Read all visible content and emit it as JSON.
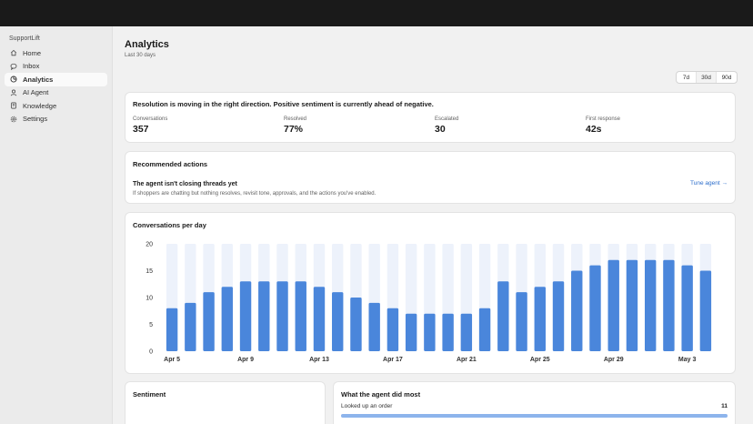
{
  "app": {
    "brand": "SupportLift"
  },
  "sidebar": {
    "items": [
      {
        "label": "Home",
        "icon": "home-icon",
        "active": false
      },
      {
        "label": "Inbox",
        "icon": "inbox-icon",
        "active": false
      },
      {
        "label": "Analytics",
        "icon": "analytics-icon",
        "active": true
      },
      {
        "label": "AI Agent",
        "icon": "agent-icon",
        "active": false
      },
      {
        "label": "Knowledge",
        "icon": "book-icon",
        "active": false
      },
      {
        "label": "Settings",
        "icon": "gear-icon",
        "active": false
      }
    ]
  },
  "page": {
    "title": "Analytics",
    "subtitle": "Last 30 days"
  },
  "range": {
    "options": [
      "7d",
      "30d",
      "90d"
    ],
    "selected": "30d"
  },
  "summary": {
    "headline": "Resolution is moving in the right direction. Positive sentiment is currently ahead of negative.",
    "metrics": [
      {
        "label": "Conversations",
        "value": "357"
      },
      {
        "label": "Resolved",
        "value": "77%"
      },
      {
        "label": "Escalated",
        "value": "30"
      },
      {
        "label": "First response",
        "value": "42s"
      }
    ]
  },
  "recommendations": {
    "title": "Recommended actions",
    "item_title": "The agent isn't closing threads yet",
    "item_body": "If shoppers are chatting but nothing resolves, revisit tone, approvals, and the actions you've enabled.",
    "link": "Tune agent →"
  },
  "chart_card": {
    "title": "Conversations per day"
  },
  "chart_data": {
    "type": "bar",
    "title": "Conversations per day",
    "categories": [
      "Apr 5",
      "Apr 6",
      "Apr 7",
      "Apr 8",
      "Apr 9",
      "Apr 10",
      "Apr 11",
      "Apr 12",
      "Apr 13",
      "Apr 14",
      "Apr 15",
      "Apr 16",
      "Apr 17",
      "Apr 18",
      "Apr 19",
      "Apr 20",
      "Apr 21",
      "Apr 22",
      "Apr 23",
      "Apr 24",
      "Apr 25",
      "Apr 26",
      "Apr 27",
      "Apr 28",
      "Apr 29",
      "Apr 30",
      "May 1",
      "May 2",
      "May 3",
      "May 4"
    ],
    "x_tick_labels": [
      "Apr 5",
      "Apr 9",
      "Apr 13",
      "Apr 17",
      "Apr 21",
      "Apr 25",
      "Apr 29",
      "May 3"
    ],
    "values": [
      8,
      9,
      11,
      12,
      13,
      13,
      13,
      13,
      12,
      11,
      10,
      9,
      8,
      7,
      7,
      7,
      7,
      8,
      13,
      11,
      12,
      13,
      15,
      16,
      17,
      17,
      17,
      17,
      16,
      15
    ],
    "ylim": [
      0,
      20
    ],
    "yticks": [
      "0",
      "5",
      "10",
      "15",
      "20"
    ],
    "colors": {
      "bar": "#4a86db",
      "track": "#edf2fb"
    }
  },
  "sentiment": {
    "title": "Sentiment",
    "colors": {
      "positive": "#2a9b4f",
      "neutral": "#b5b5b5",
      "negative": "#e04a4a"
    }
  },
  "agent_actions": {
    "title": "What the agent did most",
    "items": [
      {
        "label": "Looked up an order",
        "count": "11",
        "fraction": 1.0
      }
    ]
  }
}
